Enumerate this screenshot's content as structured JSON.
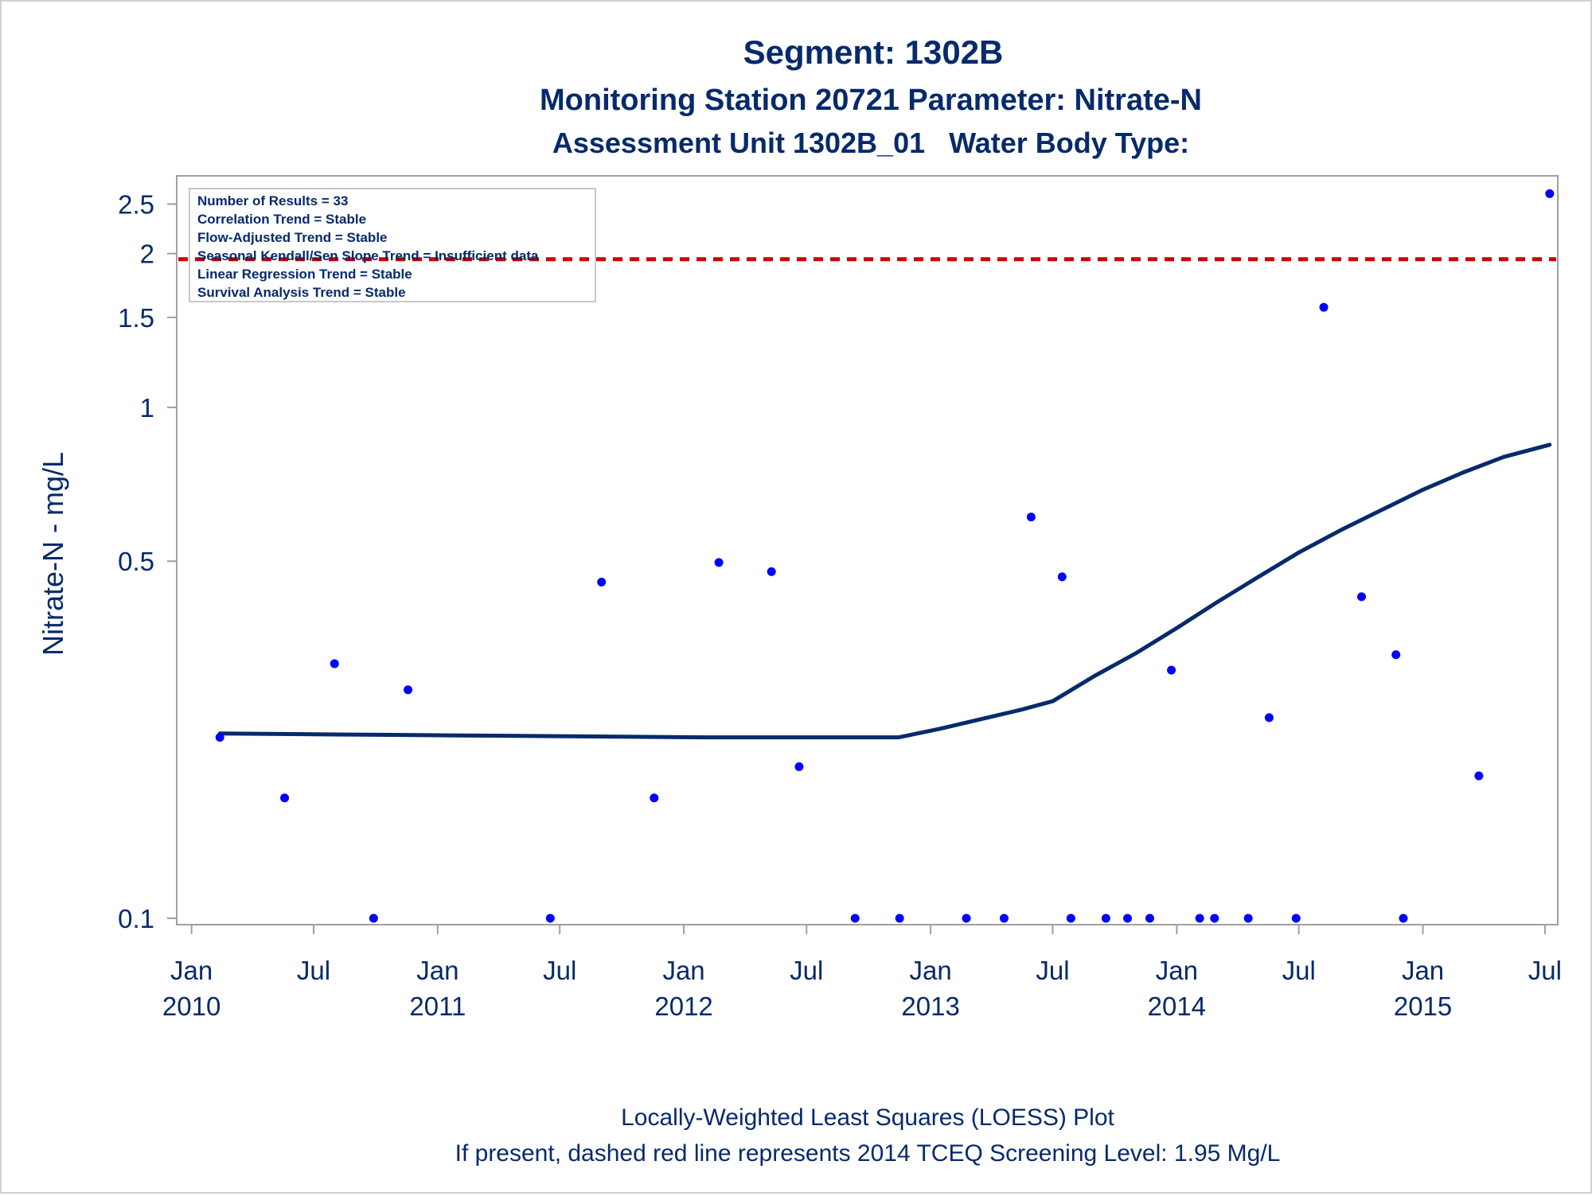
{
  "chart_data": {
    "type": "scatter",
    "title": "Segment: 1302B",
    "subtitle_1": "Monitoring Station 20721 Parameter: Nitrate-N",
    "subtitle_2": "Assessment Unit 1302B_01   Water Body Type:",
    "ylabel": "Nitrate-N - mg/L",
    "xlabel": "",
    "y_scale": "log",
    "ylim": [
      0.1,
      2.7
    ],
    "xlim": [
      "2009-12-10",
      "2015-07-20"
    ],
    "y_ticks": [
      {
        "value": 0.1,
        "label": "0.1"
      },
      {
        "value": 0.5,
        "label": "0.5"
      },
      {
        "value": 1,
        "label": "1"
      },
      {
        "value": 1.5,
        "label": "1.5"
      },
      {
        "value": 2,
        "label": "2"
      },
      {
        "value": 2.5,
        "label": "2.5"
      }
    ],
    "x_ticks": [
      {
        "date": "2010-01-01",
        "label": "Jan",
        "label2": "2010"
      },
      {
        "date": "2010-07-01",
        "label": "Jul",
        "label2": ""
      },
      {
        "date": "2011-01-01",
        "label": "Jan",
        "label2": "2011"
      },
      {
        "date": "2011-07-01",
        "label": "Jul",
        "label2": ""
      },
      {
        "date": "2012-01-01",
        "label": "Jan",
        "label2": "2012"
      },
      {
        "date": "2012-07-01",
        "label": "Jul",
        "label2": ""
      },
      {
        "date": "2013-01-01",
        "label": "Jan",
        "label2": "2013"
      },
      {
        "date": "2013-07-01",
        "label": "Jul",
        "label2": ""
      },
      {
        "date": "2014-01-01",
        "label": "Jan",
        "label2": "2014"
      },
      {
        "date": "2014-07-01",
        "label": "Jul",
        "label2": ""
      },
      {
        "date": "2015-01-01",
        "label": "Jan",
        "label2": "2015"
      },
      {
        "date": "2015-07-01",
        "label": "Jul",
        "label2": ""
      }
    ],
    "points": [
      {
        "x": "2010-02-12",
        "y": 0.226
      },
      {
        "x": "2010-05-19",
        "y": 0.172
      },
      {
        "x": "2010-08-01",
        "y": 0.315
      },
      {
        "x": "2010-09-28",
        "y": 0.1
      },
      {
        "x": "2010-11-18",
        "y": 0.28
      },
      {
        "x": "2011-06-17",
        "y": 0.1
      },
      {
        "x": "2011-09-01",
        "y": 0.455
      },
      {
        "x": "2011-11-18",
        "y": 0.172
      },
      {
        "x": "2012-02-22",
        "y": 0.497
      },
      {
        "x": "2012-05-10",
        "y": 0.477
      },
      {
        "x": "2012-06-20",
        "y": 0.198
      },
      {
        "x": "2012-09-11",
        "y": 0.1
      },
      {
        "x": "2012-11-16",
        "y": 0.1
      },
      {
        "x": "2013-02-23",
        "y": 0.1
      },
      {
        "x": "2013-04-20",
        "y": 0.1
      },
      {
        "x": "2013-05-30",
        "y": 0.61
      },
      {
        "x": "2013-07-15",
        "y": 0.466
      },
      {
        "x": "2013-07-28",
        "y": 0.1
      },
      {
        "x": "2013-09-18",
        "y": 0.1
      },
      {
        "x": "2013-10-20",
        "y": 0.1
      },
      {
        "x": "2013-11-22",
        "y": 0.1
      },
      {
        "x": "2013-12-24",
        "y": 0.306
      },
      {
        "x": "2014-02-04",
        "y": 0.1
      },
      {
        "x": "2014-02-26",
        "y": 0.1
      },
      {
        "x": "2014-04-17",
        "y": 0.1
      },
      {
        "x": "2014-05-18",
        "y": 0.247
      },
      {
        "x": "2014-06-27",
        "y": 0.1
      },
      {
        "x": "2014-08-07",
        "y": 1.57
      },
      {
        "x": "2014-10-02",
        "y": 0.426
      },
      {
        "x": "2014-11-22",
        "y": 0.328
      },
      {
        "x": "2014-12-03",
        "y": 0.1
      },
      {
        "x": "2015-03-25",
        "y": 0.19
      },
      {
        "x": "2015-07-08",
        "y": 2.62
      }
    ],
    "loess_line": [
      {
        "x": "2010-02-12",
        "y": 0.23
      },
      {
        "x": "2010-08-01",
        "y": 0.229
      },
      {
        "x": "2011-02-01",
        "y": 0.228
      },
      {
        "x": "2011-08-01",
        "y": 0.227
      },
      {
        "x": "2012-02-01",
        "y": 0.226
      },
      {
        "x": "2012-08-01",
        "y": 0.226
      },
      {
        "x": "2012-11-15",
        "y": 0.226
      },
      {
        "x": "2013-01-15",
        "y": 0.235
      },
      {
        "x": "2013-03-15",
        "y": 0.245
      },
      {
        "x": "2013-05-15",
        "y": 0.256
      },
      {
        "x": "2013-07-01",
        "y": 0.266
      },
      {
        "x": "2013-09-01",
        "y": 0.298
      },
      {
        "x": "2013-11-01",
        "y": 0.33
      },
      {
        "x": "2014-01-01",
        "y": 0.37
      },
      {
        "x": "2014-03-01",
        "y": 0.415
      },
      {
        "x": "2014-05-01",
        "y": 0.465
      },
      {
        "x": "2014-07-01",
        "y": 0.52
      },
      {
        "x": "2014-09-01",
        "y": 0.575
      },
      {
        "x": "2014-11-01",
        "y": 0.63
      },
      {
        "x": "2015-01-01",
        "y": 0.69
      },
      {
        "x": "2015-03-01",
        "y": 0.745
      },
      {
        "x": "2015-05-01",
        "y": 0.8
      },
      {
        "x": "2015-07-08",
        "y": 0.845
      }
    ],
    "reference_line": {
      "y": 1.95,
      "style": "dashed",
      "color": "#cc0000"
    },
    "marker_color": "#0000ff",
    "line_color": "#062a6b",
    "text_color": "#062a6b",
    "frame_color": "#a0a0a0",
    "info_box": {
      "placement": "top-left",
      "lines": [
        "Number of Results = 33",
        "Correlation Trend = Stable",
        "Flow-Adjusted Trend = Stable",
        "Seasonal Kendall/Sen Slope Trend = Insufficient data",
        "Linear Regression Trend = Stable",
        "Survival Analysis Trend = Stable"
      ]
    },
    "footnotes": [
      "Locally-Weighted Least Squares (LOESS) Plot",
      "If present, dashed red line represents 2014 TCEQ Screening Level: 1.95 Mg/L"
    ]
  }
}
